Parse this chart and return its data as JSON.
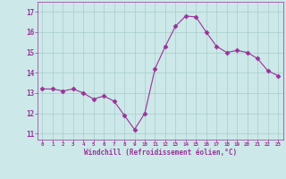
{
  "x": [
    0,
    1,
    2,
    3,
    4,
    5,
    6,
    7,
    8,
    9,
    10,
    11,
    12,
    13,
    14,
    15,
    16,
    17,
    18,
    19,
    20,
    21,
    22,
    23
  ],
  "y": [
    13.2,
    13.2,
    13.1,
    13.2,
    13.0,
    12.7,
    12.85,
    12.6,
    11.9,
    11.2,
    12.0,
    14.2,
    15.3,
    16.3,
    16.8,
    16.75,
    16.0,
    15.3,
    15.0,
    15.1,
    15.0,
    14.7,
    14.1,
    13.85
  ],
  "line_color": "#993399",
  "marker": "D",
  "marker_size": 2.5,
  "bg_color": "#cce8e8",
  "xlabel": "Windchill (Refroidissement éolien,°C)",
  "ylim": [
    10.7,
    17.5
  ],
  "yticks": [
    11,
    12,
    13,
    14,
    15,
    16,
    17
  ],
  "xticks": [
    0,
    1,
    2,
    3,
    4,
    5,
    6,
    7,
    8,
    9,
    10,
    11,
    12,
    13,
    14,
    15,
    16,
    17,
    18,
    19,
    20,
    21,
    22,
    23
  ],
  "grid_color": "#aacccc",
  "xlim": [
    -0.5,
    23.5
  ]
}
